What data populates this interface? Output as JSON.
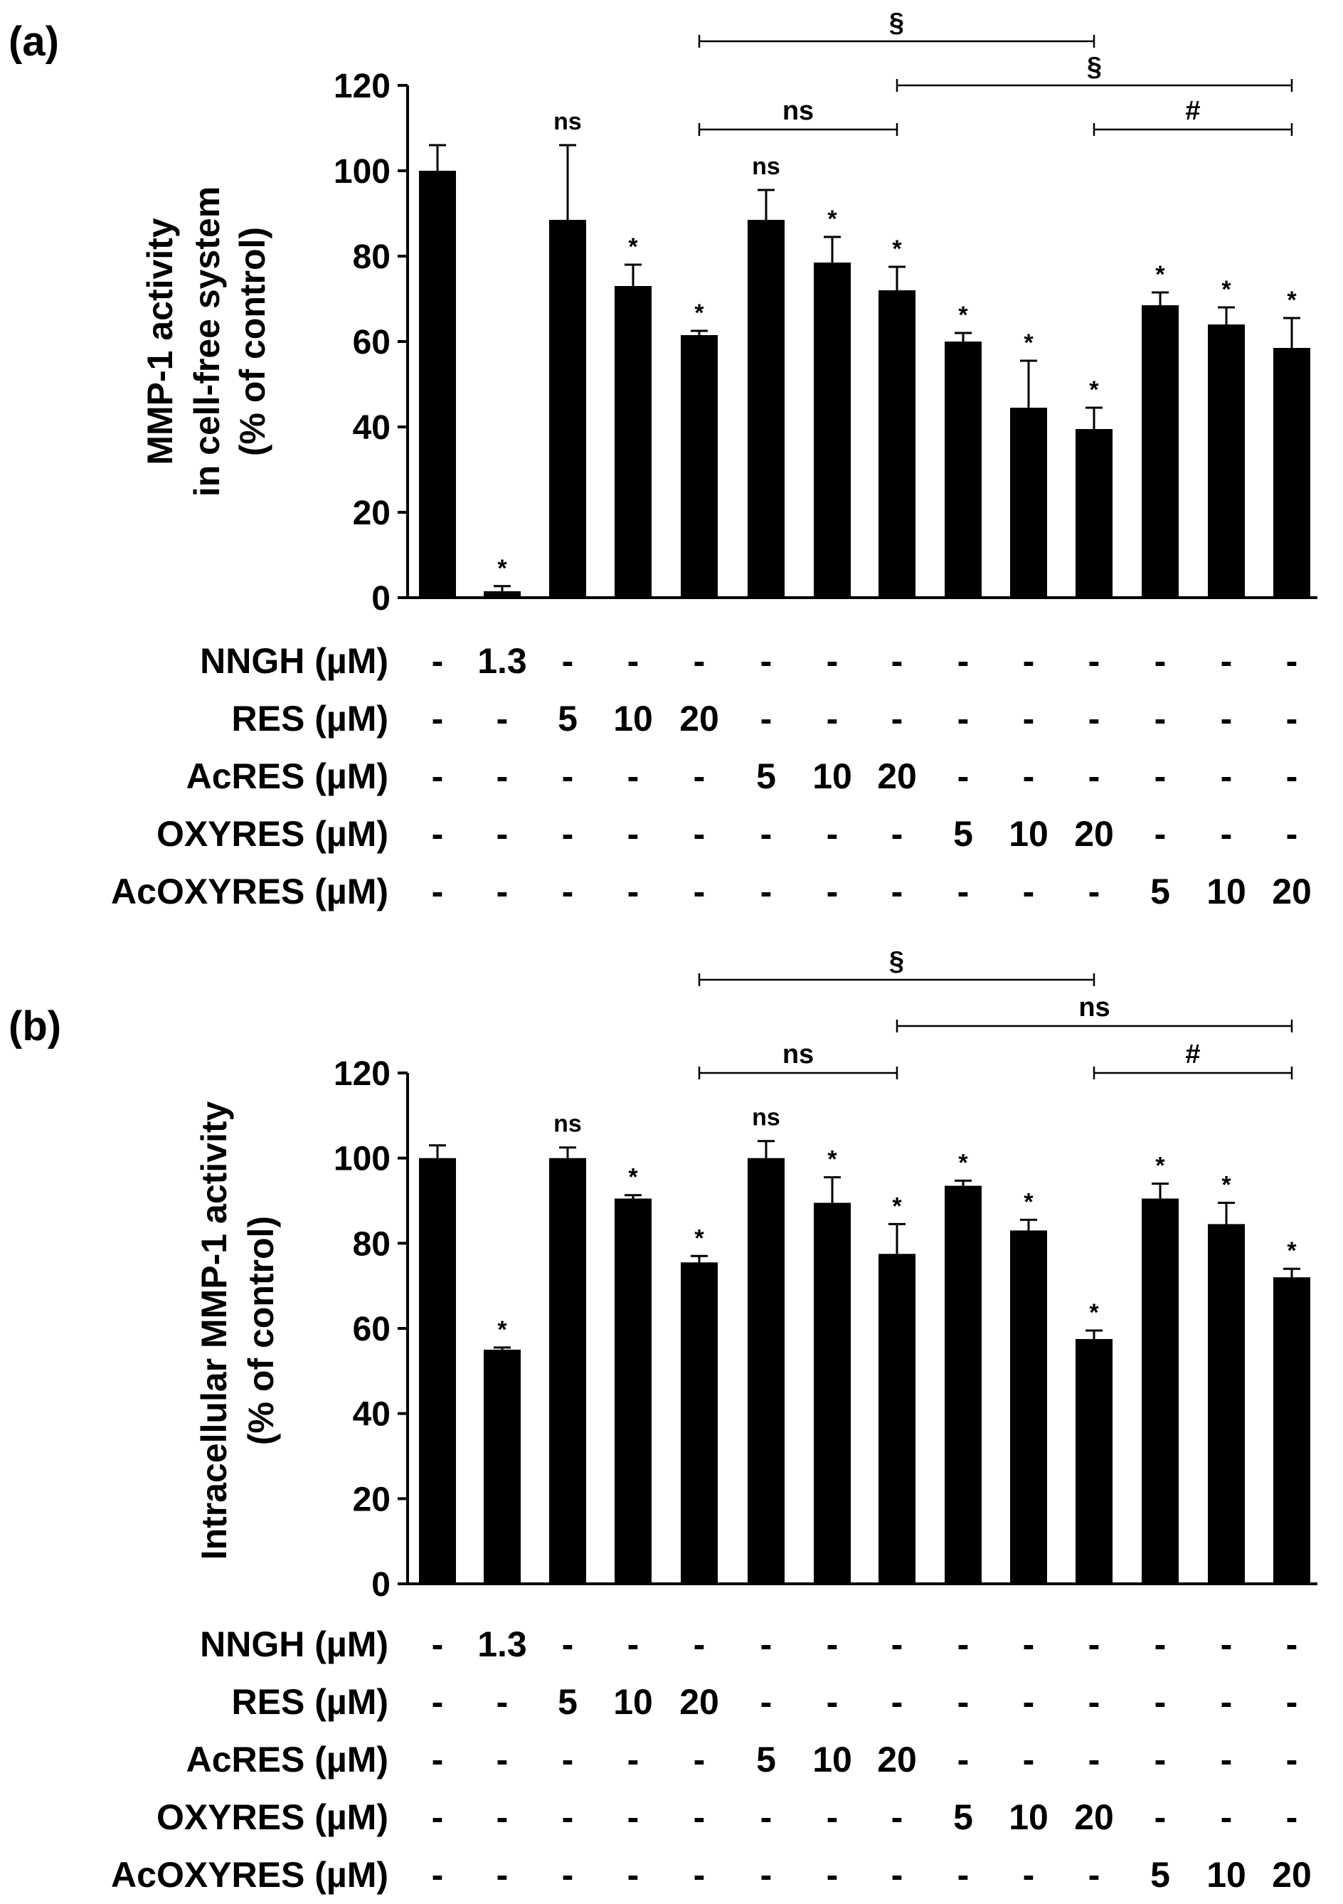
{
  "page": {
    "background": "#ffffff",
    "bar_color": "#000000"
  },
  "chart_data": [
    {
      "type": "bar",
      "panel_label": "(a)",
      "ylabel_lines": [
        "MMP-1 activity",
        "in cell-free system",
        "(% of control)"
      ],
      "ylim": [
        0,
        120
      ],
      "yticks": [
        0,
        20,
        40,
        60,
        80,
        100,
        120
      ],
      "values": [
        100,
        1.5,
        88.5,
        73,
        61.5,
        88.5,
        78.5,
        72,
        60,
        44.5,
        39.5,
        68.5,
        64,
        58.5
      ],
      "errors": [
        6,
        1.2,
        17.5,
        5,
        1,
        7,
        6,
        5.5,
        2,
        11,
        5,
        3,
        4,
        7
      ],
      "sig": [
        "",
        "*",
        "ns",
        "*",
        "*",
        "ns",
        "*",
        "*",
        "*",
        "*",
        "*",
        "*",
        "*",
        "*"
      ],
      "brackets": [
        {
          "from": 4,
          "to": 7,
          "label": "ns"
        },
        {
          "from": 4,
          "to": 10,
          "label": "§"
        },
        {
          "from": 7,
          "to": 13,
          "label": "§"
        },
        {
          "from": 10,
          "to": 13,
          "label": "#"
        }
      ],
      "conditions": [
        {
          "label": "NNGH (µM)",
          "values": [
            "-",
            "1.3",
            "-",
            "-",
            "-",
            "-",
            "-",
            "-",
            "-",
            "-",
            "-",
            "-",
            "-",
            "-"
          ]
        },
        {
          "label": "RES (µM)",
          "values": [
            "-",
            "-",
            "5",
            "10",
            "20",
            "-",
            "-",
            "-",
            "-",
            "-",
            "-",
            "-",
            "-",
            "-"
          ]
        },
        {
          "label": "AcRES (µM)",
          "values": [
            "-",
            "-",
            "-",
            "-",
            "-",
            "5",
            "10",
            "20",
            "-",
            "-",
            "-",
            "-",
            "-",
            "-"
          ]
        },
        {
          "label": "OXYRES (µM)",
          "values": [
            "-",
            "-",
            "-",
            "-",
            "-",
            "-",
            "-",
            "-",
            "5",
            "10",
            "20",
            "-",
            "-",
            "-"
          ]
        },
        {
          "label": "AcOXYRES (µM)",
          "values": [
            "-",
            "-",
            "-",
            "-",
            "-",
            "-",
            "-",
            "-",
            "-",
            "-",
            "-",
            "5",
            "10",
            "20"
          ]
        }
      ]
    },
    {
      "type": "bar",
      "panel_label": "(b)",
      "ylabel_lines": [
        "Intracellular MMP-1 activity",
        "(% of control)"
      ],
      "ylim": [
        0,
        120
      ],
      "yticks": [
        0,
        20,
        40,
        60,
        80,
        100,
        120
      ],
      "values": [
        100,
        55,
        100,
        90.5,
        75.5,
        100,
        89.5,
        77.5,
        93.5,
        83,
        57.5,
        90.5,
        84.5,
        72
      ],
      "errors": [
        3,
        0.5,
        2.5,
        0.8,
        1.5,
        4,
        6,
        7,
        1.2,
        2.5,
        2,
        3.5,
        5,
        2
      ],
      "sig": [
        "",
        "*",
        "ns",
        "*",
        "*",
        "ns",
        "*",
        "*",
        "*",
        "*",
        "*",
        "*",
        "*",
        "*"
      ],
      "brackets": [
        {
          "from": 4,
          "to": 7,
          "label": "ns"
        },
        {
          "from": 4,
          "to": 10,
          "label": "§"
        },
        {
          "from": 7,
          "to": 13,
          "label": "ns"
        },
        {
          "from": 10,
          "to": 13,
          "label": "#"
        }
      ],
      "conditions": [
        {
          "label": "NNGH (µM)",
          "values": [
            "-",
            "1.3",
            "-",
            "-",
            "-",
            "-",
            "-",
            "-",
            "-",
            "-",
            "-",
            "-",
            "-",
            "-"
          ]
        },
        {
          "label": "RES (µM)",
          "values": [
            "-",
            "-",
            "5",
            "10",
            "20",
            "-",
            "-",
            "-",
            "-",
            "-",
            "-",
            "-",
            "-",
            "-"
          ]
        },
        {
          "label": "AcRES (µM)",
          "values": [
            "-",
            "-",
            "-",
            "-",
            "-",
            "5",
            "10",
            "20",
            "-",
            "-",
            "-",
            "-",
            "-",
            "-"
          ]
        },
        {
          "label": "OXYRES (µM)",
          "values": [
            "-",
            "-",
            "-",
            "-",
            "-",
            "-",
            "-",
            "-",
            "5",
            "10",
            "20",
            "-",
            "-",
            "-"
          ]
        },
        {
          "label": "AcOXYRES (µM)",
          "values": [
            "-",
            "-",
            "-",
            "-",
            "-",
            "-",
            "-",
            "-",
            "-",
            "-",
            "-",
            "5",
            "10",
            "20"
          ]
        }
      ]
    }
  ]
}
